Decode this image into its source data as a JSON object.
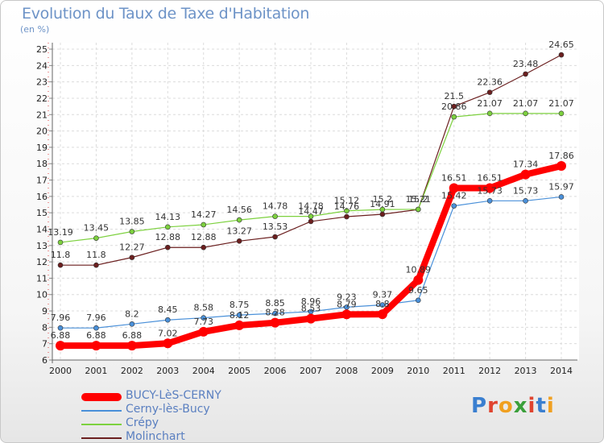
{
  "header": {
    "title": "Evolution du Taux de Taxe d'Habitation",
    "unit": "(en %)"
  },
  "chart_data": {
    "type": "line",
    "title": "Evolution du Taux de Taxe d'Habitation",
    "ylabel": "(en %)",
    "xlabel": "",
    "x": [
      "2000",
      "2001",
      "2002",
      "2003",
      "2004",
      "2005",
      "2006",
      "2007",
      "2008",
      "2009",
      "2010",
      "2011",
      "2012",
      "2013",
      "2014"
    ],
    "ylim": [
      6,
      25
    ],
    "yticks": [
      6,
      7,
      8,
      9,
      10,
      11,
      12,
      13,
      14,
      15,
      16,
      17,
      18,
      19,
      20,
      21,
      22,
      23,
      24,
      25
    ],
    "grid": true,
    "legend": "bottom-left",
    "series": [
      {
        "name": "BUCY-LèS-CERNY",
        "color": "#ff0000",
        "values": [
          6.88,
          6.88,
          6.88,
          7.02,
          7.73,
          8.12,
          8.28,
          8.53,
          8.79,
          8.8,
          10.89,
          16.51,
          16.51,
          17.34,
          17.86
        ],
        "labels": [
          "6.88",
          "6.88",
          "6.88",
          "7.02",
          "7.73",
          "8.12",
          "8.28",
          "8.53",
          "8.79",
          "8.8",
          "10.89",
          "16.51",
          "16.51",
          "17.34",
          "17.86"
        ]
      },
      {
        "name": "Cerny-lès-Bucy",
        "color": "#4a90d9",
        "values": [
          7.96,
          7.96,
          8.2,
          8.45,
          8.58,
          8.75,
          8.85,
          8.96,
          9.23,
          9.37,
          9.65,
          15.42,
          15.73,
          15.73,
          15.97
        ],
        "labels": [
          "7.96",
          "7.96",
          "8.2",
          "8.45",
          "8.58",
          "8.75",
          "8.85",
          "8.96",
          "9.23",
          "9.37",
          "9.65",
          "15.42",
          "15.73",
          "15.73",
          "15.97"
        ]
      },
      {
        "name": "Crépy",
        "color": "#7dd13f",
        "values": [
          13.19,
          13.45,
          13.85,
          14.13,
          14.27,
          14.56,
          14.78,
          14.78,
          15.12,
          15.2,
          15.21,
          20.86,
          21.07,
          21.07,
          21.07
        ],
        "labels": [
          "13.19",
          "13.45",
          "13.85",
          "14.13",
          "14.27",
          "14.56",
          "14.78",
          "14.78",
          "15.12",
          "15.2",
          "15.21",
          "20.86",
          "21.07",
          "21.07",
          "21.07"
        ]
      },
      {
        "name": "Molinchart",
        "color": "#6b1f1f",
        "values": [
          11.8,
          11.8,
          12.27,
          12.88,
          12.88,
          13.27,
          13.53,
          14.47,
          14.76,
          14.91,
          15.2,
          21.5,
          22.36,
          23.48,
          24.65
        ],
        "labels": [
          "11.8",
          "11.8",
          "12.27",
          "12.88",
          "12.88",
          "13.27",
          "13.53",
          "14.47",
          "14.76",
          "14.91",
          "15.2",
          "21.5",
          "22.36",
          "23.48",
          "24.65"
        ]
      }
    ]
  },
  "legend_items": [
    {
      "label": "BUCY-LèS-CERNY",
      "color": "#ff0000"
    },
    {
      "label": "Cerny-lès-Bucy",
      "color": "#4a90d9"
    },
    {
      "label": "Crépy",
      "color": "#7dd13f"
    },
    {
      "label": "Molinchart",
      "color": "#6b1f1f"
    }
  ],
  "logo": {
    "letters": [
      "P",
      "r",
      "o",
      "x",
      "i",
      "t",
      "i"
    ],
    "colors": [
      "#3a7fd0",
      "#e0442f",
      "#f0a020",
      "#3a9f3a",
      "#e0442f",
      "#3a7fd0",
      "#f0a020"
    ]
  }
}
